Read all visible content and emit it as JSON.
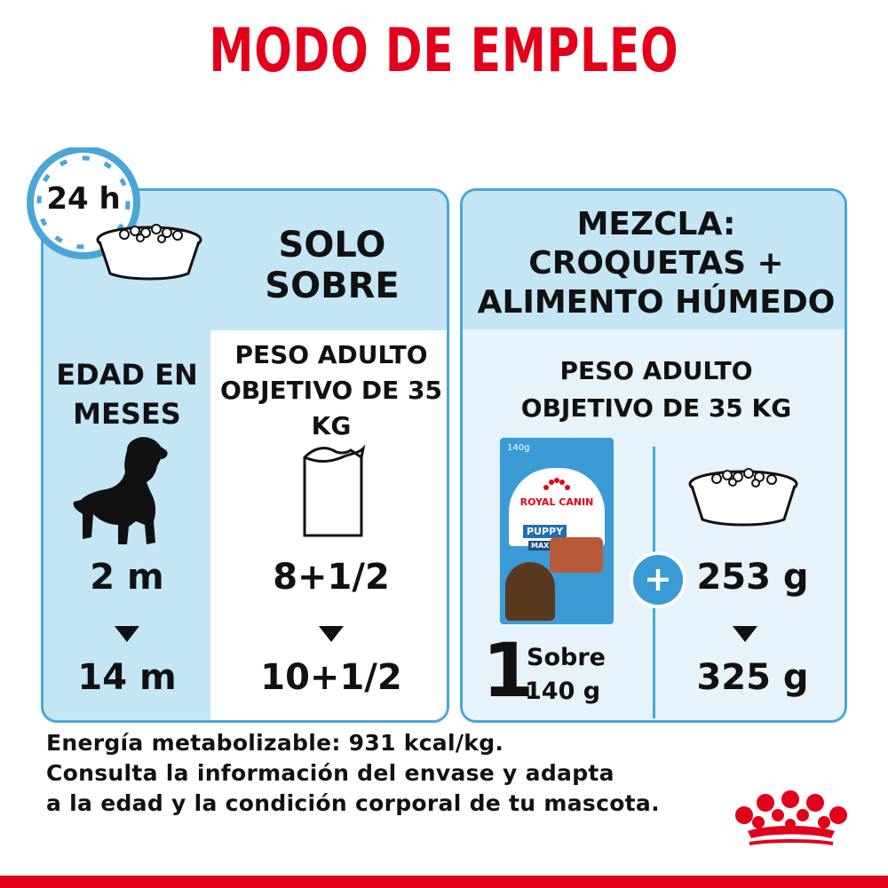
{
  "title": "MODO DE EMPLEO",
  "clock": {
    "label": "24 h"
  },
  "left_panel": {
    "heading_line1": "SOLO",
    "heading_line2": "SOBRE",
    "age_label_line1": "EDAD EN",
    "age_label_line2": "MESES",
    "weight_label_line1": "PESO ADULTO",
    "weight_label_line2": "OBJETIVO DE 35",
    "weight_label_line3": "KG",
    "age_from": "2 m",
    "age_to": "14 m",
    "pouch_from": "8+1/2",
    "pouch_to": "10+1/2"
  },
  "right_panel": {
    "heading_line1": "MEZCLA:",
    "heading_line2": "CROQUETAS +",
    "heading_line3": "ALIMENTO HÚMEDO",
    "weight_label_line1": "PESO ADULTO",
    "weight_label_line2": "OBJETIVO DE 35 KG",
    "pouch_count": "1",
    "pouch_unit": "Sobre",
    "pouch_weight": "140 g",
    "kibble_from": "253 g",
    "kibble_to": "325 g",
    "plus_symbol": "+",
    "product": {
      "weight": "140g",
      "brand": "ROYAL CANIN",
      "name": "PUPPY",
      "size": "MAXI"
    }
  },
  "footer": {
    "line1": "Energía metabolizable: 931 kcal/kg.",
    "line2": "Consulta la información del envase y adapta",
    "line3": "a la edad y la condición corporal de tu mascota."
  },
  "colors": {
    "brand_red": "#e2001a",
    "accent_blue": "#4aa6d8",
    "light_blue": "#c4e5f4",
    "pale_blue": "#e6f3fa"
  }
}
